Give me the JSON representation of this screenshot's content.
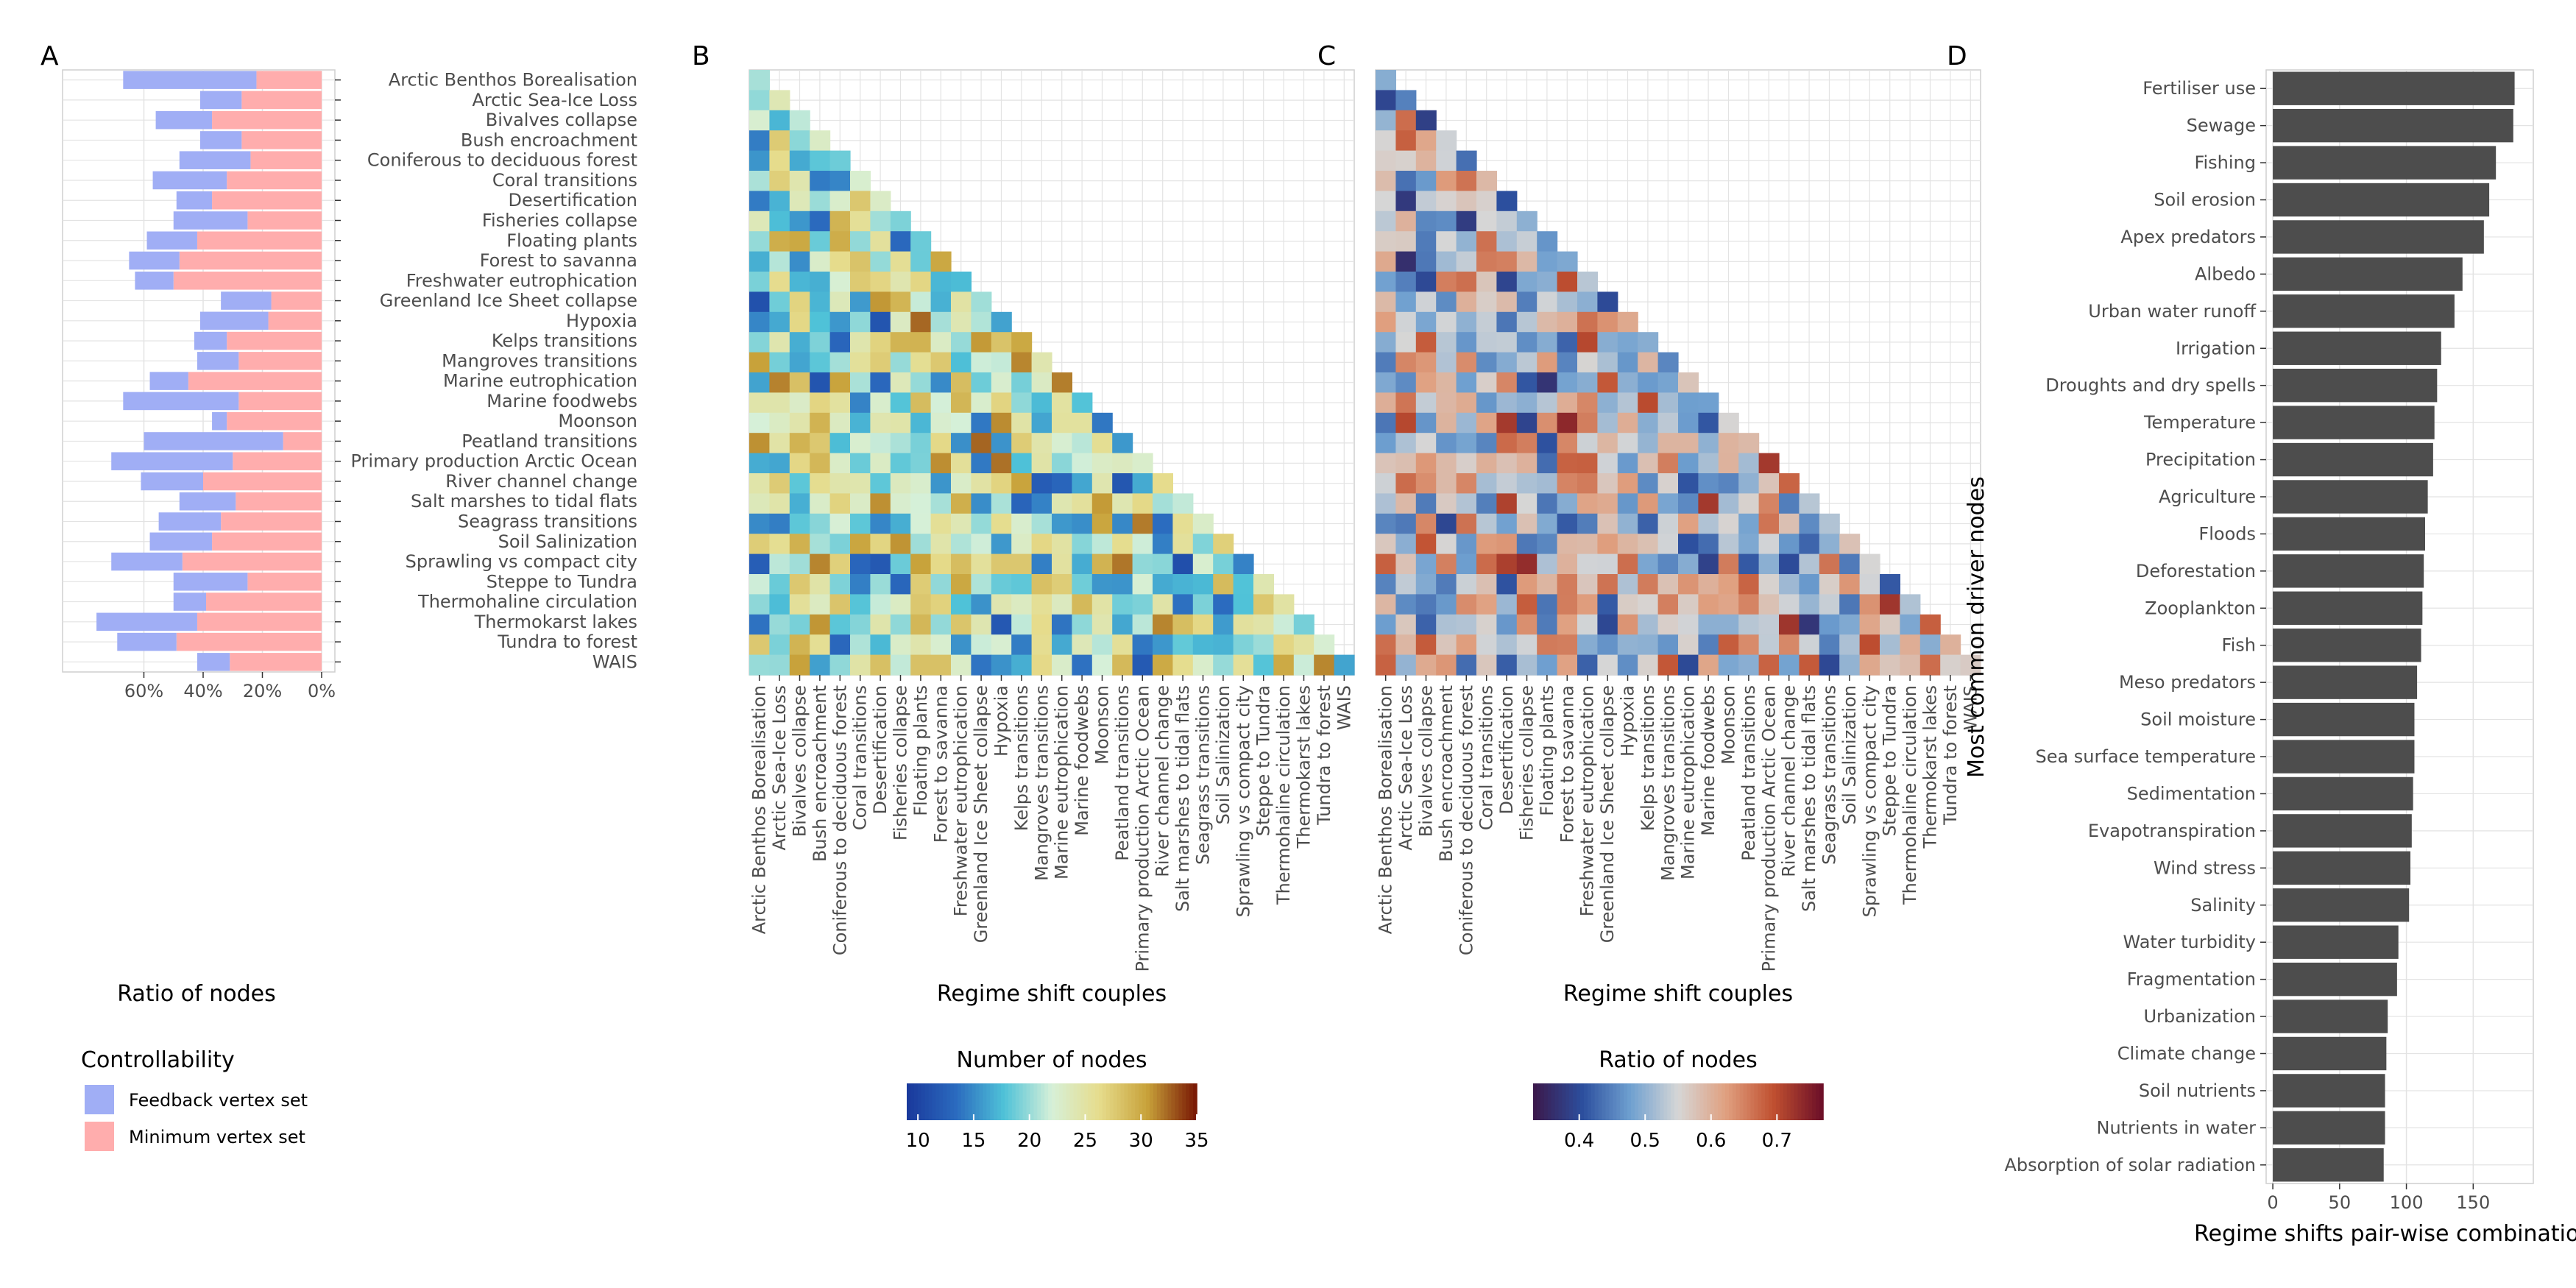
{
  "panel_labels": [
    "A",
    "B",
    "C",
    "D"
  ],
  "rs_names": [
    "Arctic Benthos Borealisation",
    "Arctic Sea-Ice Loss",
    "Bivalves collapse",
    "Bush encroachment",
    "Coniferous to deciduous forest",
    "Coral transitions",
    "Desertification",
    "Fisheries collapse",
    "Floating plants",
    "Forest to savanna",
    "Freshwater eutrophication",
    "Greenland Ice Sheet collapse",
    "Hypoxia",
    "Kelps transitions",
    "Mangroves transitions",
    "Marine eutrophication",
    "Marine foodwebs",
    "Moonson",
    "Peatland transitions",
    "Primary production Arctic Ocean",
    "River channel change",
    "Salt marshes to tidal flats",
    "Seagrass transitions",
    "Soil Salinization",
    "Sprawling vs compact city",
    "Steppe to Tundra",
    "Thermohaline circulation",
    "Thermokarst lakes",
    "Tundra to forest",
    "WAIS"
  ],
  "chart_data": [
    {
      "panel": "A",
      "type": "bar",
      "orientation": "horizontal",
      "stacked": true,
      "xlabel": "Ratio of nodes",
      "x_ticks": [
        "60%",
        "40%",
        "20%",
        "0%"
      ],
      "xlim": [
        0,
        0.8
      ],
      "x_reversed": true,
      "legend": {
        "title": "Controllability",
        "position": "bottom-left",
        "entries": [
          "Feedback vertex set",
          "Minimum vertex set"
        ],
        "colors": [
          "#a0aef5",
          "#ffadad"
        ]
      },
      "categories_ref": "rs_names",
      "series": [
        {
          "name": "Minimum vertex set",
          "values": [
            0.22,
            0.27,
            0.37,
            0.27,
            0.24,
            0.32,
            0.37,
            0.25,
            0.42,
            0.48,
            0.5,
            0.17,
            0.18,
            0.32,
            0.28,
            0.45,
            0.28,
            0.32,
            0.13,
            0.3,
            0.4,
            0.29,
            0.34,
            0.37,
            0.47,
            0.25,
            0.39,
            0.42,
            0.49,
            0.31
          ]
        },
        {
          "name": "Feedback vertex set",
          "values": [
            0.45,
            0.14,
            0.19,
            0.14,
            0.24,
            0.25,
            0.12,
            0.25,
            0.17,
            0.17,
            0.13,
            0.17,
            0.23,
            0.11,
            0.14,
            0.13,
            0.39,
            0.05,
            0.47,
            0.41,
            0.21,
            0.19,
            0.21,
            0.21,
            0.24,
            0.25,
            0.11,
            0.34,
            0.2,
            0.11
          ]
        }
      ]
    },
    {
      "panel": "B",
      "type": "heatmap",
      "xlabel": "Regime shift couples",
      "legend": {
        "title": "Number of nodes",
        "ticks": [
          10,
          15,
          20,
          25,
          30,
          35
        ],
        "range": [
          9,
          35
        ],
        "colors": [
          "#1a3a9c",
          "#2b6bbf",
          "#4fc2d8",
          "#d6f0d8",
          "#e6dc8c",
          "#c8a23a",
          "#7a1a05"
        ]
      },
      "rows_ref": "rs_names",
      "cols_ref": "rs_names",
      "lower_triangle": true,
      "values_seed": 17
    },
    {
      "panel": "C",
      "type": "heatmap",
      "xlabel": "Regime shift couples",
      "legend": {
        "title": "Ratio of nodes",
        "ticks": [
          0.4,
          0.5,
          0.6,
          0.7
        ],
        "range": [
          0.33,
          0.77
        ],
        "colors": [
          "#3b1a4d",
          "#2c4f9e",
          "#6fa0d0",
          "#d6d6d6",
          "#e0a080",
          "#c05030",
          "#6e1028"
        ]
      },
      "rows_ref": "rs_names",
      "cols_ref": "rs_names",
      "lower_triangle": true,
      "values_seed": 91
    },
    {
      "panel": "D",
      "type": "bar",
      "orientation": "horizontal",
      "ylabel": "Most common driver nodes",
      "xlabel": "Regime shifts pair-wise combinations",
      "x_ticks": [
        0,
        50,
        100,
        150
      ],
      "xlim": [
        -5,
        195
      ],
      "bar_color": "#4d4d4d",
      "categories": [
        "Fertiliser use",
        "Sewage",
        "Fishing",
        "Soil erosion",
        "Apex predators",
        "Albedo",
        "Urban water runoff",
        "Irrigation",
        "Droughts and dry spells",
        "Temperature",
        "Precipitation",
        "Agriculture",
        "Floods",
        "Deforestation",
        "Zooplankton",
        "Fish",
        "Meso predators",
        "Soil moisture",
        "Sea surface temperature",
        "Sedimentation",
        "Evapotranspiration",
        "Wind stress",
        "Salinity",
        "Water turbidity",
        "Fragmentation",
        "Urbanization",
        "Climate change",
        "Soil nutrients",
        "Nutrients in water",
        "Absorption of solar radiation"
      ],
      "values": [
        181,
        180,
        167,
        162,
        158,
        142,
        136,
        126,
        123,
        121,
        120,
        116,
        114,
        113,
        112,
        111,
        108,
        106,
        106,
        105,
        104,
        103,
        102,
        94,
        93,
        86,
        85,
        84,
        84,
        83
      ]
    }
  ]
}
